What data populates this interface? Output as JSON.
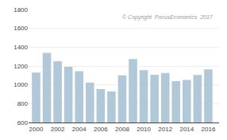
{
  "chart_data": {
    "type": "bar",
    "x": [
      2000,
      2001,
      2002,
      2003,
      2004,
      2005,
      2006,
      2007,
      2008,
      2009,
      2010,
      2011,
      2012,
      2013,
      2014,
      2015,
      2016
    ],
    "values": [
      1131,
      1340,
      1251,
      1192,
      1145,
      1024,
      955,
      930,
      1100,
      1275,
      1156,
      1108,
      1126,
      1040,
      1053,
      1105,
      1165
    ],
    "color": "#b0c8d8",
    "xlim": [
      1999.3,
      2017.0
    ],
    "xticks": [
      2000,
      2002,
      2004,
      2006,
      2008,
      2010,
      2012,
      2014,
      2016
    ],
    "ylim": [
      600,
      1800
    ],
    "yticks": [
      600,
      800,
      1000,
      1200,
      1400,
      1600,
      1800
    ],
    "grid": true,
    "annotations": [
      "© Copyright  FocusEconomics  2017"
    ]
  }
}
